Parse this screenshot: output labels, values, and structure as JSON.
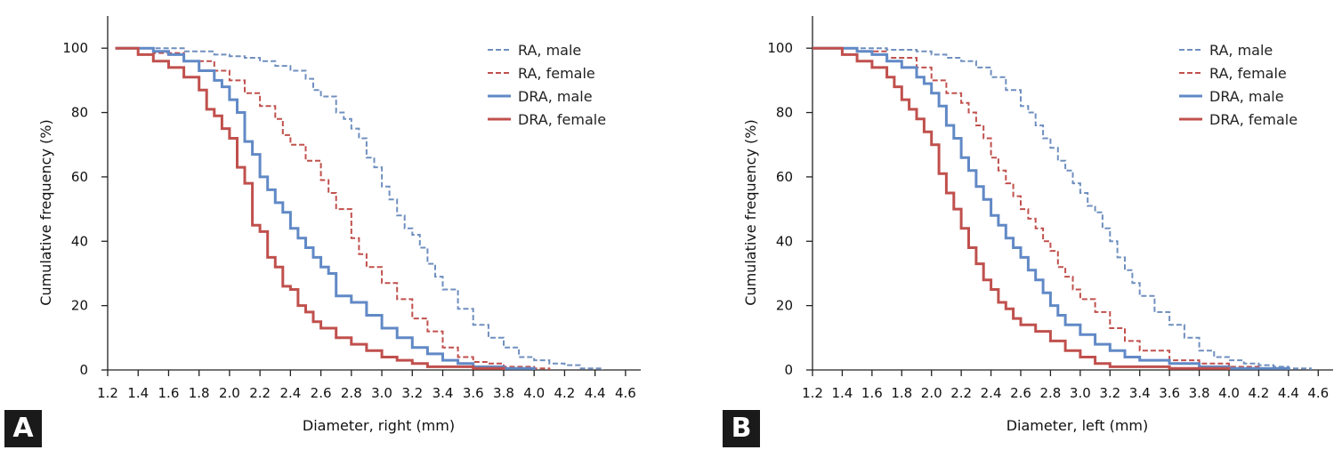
{
  "chart_data": [
    {
      "type": "line",
      "panel_label": "A",
      "xlabel": "Diameter, right (mm)",
      "ylabel": "Cumulative frequency (%)",
      "xlim": [
        1.2,
        4.7
      ],
      "ylim": [
        0,
        110
      ],
      "xticks": [
        "1.2",
        "1.4",
        "1.6",
        "1.8",
        "2.0",
        "2.2",
        "2.4",
        "2.6",
        "2.8",
        "3.0",
        "3.2",
        "3.4",
        "3.6",
        "3.8",
        "4.0",
        "4.2",
        "4.4",
        "4.6"
      ],
      "yticks": [
        "0",
        "20",
        "40",
        "60",
        "80",
        "100"
      ],
      "legend_position": "top-right",
      "series": [
        {
          "name": "RA, male",
          "color": "#6f8fbf",
          "style": "dashed",
          "x": [
            1.25,
            1.5,
            1.7,
            1.9,
            2.0,
            2.1,
            2.2,
            2.3,
            2.4,
            2.5,
            2.55,
            2.6,
            2.7,
            2.75,
            2.8,
            2.85,
            2.9,
            2.95,
            3.0,
            3.05,
            3.1,
            3.15,
            3.2,
            3.25,
            3.3,
            3.35,
            3.4,
            3.5,
            3.6,
            3.7,
            3.8,
            3.9,
            4.0,
            4.1,
            4.2,
            4.3,
            4.45
          ],
          "y": [
            100,
            100,
            99,
            98,
            97.5,
            97,
            96,
            94.5,
            93,
            90.5,
            87,
            85,
            80,
            78,
            75,
            72,
            66,
            63,
            57,
            53,
            48,
            44,
            42,
            38,
            33,
            29,
            25,
            19,
            14,
            10,
            7,
            4,
            3,
            2,
            1.5,
            0.5,
            0
          ]
        },
        {
          "name": "RA, female",
          "color": "#c0504d",
          "style": "dashed",
          "x": [
            1.25,
            1.5,
            1.7,
            1.9,
            2.0,
            2.1,
            2.2,
            2.3,
            2.35,
            2.4,
            2.5,
            2.6,
            2.65,
            2.7,
            2.8,
            2.85,
            2.9,
            3.0,
            3.1,
            3.2,
            3.3,
            3.4,
            3.5,
            3.6,
            3.7,
            3.8,
            3.9,
            4.0,
            4.1
          ],
          "y": [
            100,
            98.5,
            96,
            93,
            90,
            86,
            82,
            78,
            73,
            70,
            65,
            59,
            55,
            50,
            41,
            36,
            32,
            27,
            22,
            16,
            12,
            7,
            4,
            2.5,
            2,
            1,
            1,
            0.5,
            0
          ]
        },
        {
          "name": "DRA, male",
          "color": "#6189c6",
          "style": "solid",
          "x": [
            1.25,
            1.5,
            1.6,
            1.7,
            1.8,
            1.9,
            1.95,
            2.0,
            2.05,
            2.1,
            2.15,
            2.2,
            2.25,
            2.3,
            2.35,
            2.4,
            2.45,
            2.5,
            2.55,
            2.6,
            2.65,
            2.7,
            2.8,
            2.9,
            3.0,
            3.1,
            3.2,
            3.3,
            3.4,
            3.5,
            3.6,
            3.7,
            3.8,
            3.9,
            4.0
          ],
          "y": [
            100,
            99,
            98,
            96,
            93,
            90,
            88,
            84,
            80,
            71,
            67,
            60,
            56,
            52,
            49,
            44,
            41,
            38,
            35,
            32,
            30,
            23,
            21,
            17,
            13,
            10,
            7,
            5,
            3,
            2,
            1,
            1,
            0.5,
            0.5,
            0
          ]
        },
        {
          "name": "DRA, female",
          "color": "#c0504d",
          "style": "solid",
          "x": [
            1.25,
            1.4,
            1.5,
            1.6,
            1.7,
            1.8,
            1.85,
            1.9,
            1.95,
            2.0,
            2.05,
            2.1,
            2.15,
            2.2,
            2.25,
            2.3,
            2.35,
            2.4,
            2.45,
            2.5,
            2.55,
            2.6,
            2.7,
            2.8,
            2.9,
            3.0,
            3.1,
            3.2,
            3.3,
            3.4,
            3.6,
            3.8
          ],
          "y": [
            100,
            98,
            96,
            94,
            91,
            87,
            81,
            79,
            75,
            72,
            63,
            58,
            45,
            43,
            35,
            32,
            26,
            25,
            20,
            18,
            15,
            13,
            10,
            8,
            6,
            4,
            3,
            2,
            1,
            1,
            0.5,
            0
          ]
        }
      ]
    },
    {
      "type": "line",
      "panel_label": "B",
      "xlabel": "Diameter, left (mm)",
      "ylabel": "Cumulative frequency (%)",
      "xlim": [
        1.2,
        4.7
      ],
      "ylim": [
        0,
        110
      ],
      "xticks": [
        "1.2",
        "1.4",
        "1.6",
        "1.8",
        "2.0",
        "2.2",
        "2.4",
        "2.6",
        "2.8",
        "3.0",
        "3.2",
        "3.4",
        "3.6",
        "3.8",
        "4.0",
        "4.2",
        "4.4",
        "4.6"
      ],
      "yticks": [
        "0",
        "20",
        "40",
        "60",
        "80",
        "100"
      ],
      "legend_position": "top-right",
      "series": [
        {
          "name": "RA, male",
          "color": "#6f8fbf",
          "style": "dashed",
          "x": [
            1.2,
            1.5,
            1.7,
            1.9,
            2.0,
            2.1,
            2.2,
            2.3,
            2.4,
            2.5,
            2.6,
            2.65,
            2.7,
            2.75,
            2.8,
            2.85,
            2.9,
            2.95,
            3.0,
            3.05,
            3.1,
            3.15,
            3.2,
            3.25,
            3.3,
            3.35,
            3.4,
            3.5,
            3.6,
            3.7,
            3.8,
            3.9,
            4.0,
            4.1,
            4.2,
            4.3,
            4.4,
            4.55
          ],
          "y": [
            100,
            100,
            99.5,
            99,
            98,
            97,
            96,
            94,
            91,
            87,
            82,
            80,
            76,
            72,
            69,
            65,
            62,
            58,
            55,
            51,
            49,
            44,
            40,
            35,
            31,
            27,
            23,
            18,
            14,
            10,
            6,
            4,
            3,
            2,
            1.5,
            1,
            0.5,
            0
          ]
        },
        {
          "name": "RA, female",
          "color": "#c0504d",
          "style": "dashed",
          "x": [
            1.2,
            1.5,
            1.7,
            1.9,
            2.0,
            2.1,
            2.2,
            2.25,
            2.3,
            2.35,
            2.4,
            2.45,
            2.5,
            2.55,
            2.6,
            2.65,
            2.7,
            2.75,
            2.8,
            2.85,
            2.9,
            2.95,
            3.0,
            3.1,
            3.2,
            3.3,
            3.4,
            3.6,
            3.8,
            4.0,
            4.2,
            4.4
          ],
          "y": [
            100,
            99,
            97,
            94,
            90,
            86,
            83,
            80,
            76,
            72,
            66,
            62,
            58,
            54,
            50,
            47,
            44,
            40,
            37,
            32,
            29,
            25,
            22,
            18,
            13,
            9,
            6,
            3,
            2,
            1,
            0.5,
            0
          ]
        },
        {
          "name": "DRA, male",
          "color": "#6189c6",
          "style": "solid",
          "x": [
            1.2,
            1.5,
            1.6,
            1.7,
            1.8,
            1.9,
            1.95,
            2.0,
            2.05,
            2.1,
            2.15,
            2.2,
            2.25,
            2.3,
            2.35,
            2.4,
            2.45,
            2.5,
            2.55,
            2.6,
            2.65,
            2.7,
            2.75,
            2.8,
            2.85,
            2.9,
            3.0,
            3.1,
            3.2,
            3.3,
            3.4,
            3.6,
            3.8,
            4.0,
            4.2,
            4.4
          ],
          "y": [
            100,
            99,
            98,
            96,
            94,
            91,
            89,
            86,
            82,
            76,
            72,
            66,
            62,
            57,
            53,
            48,
            45,
            41,
            38,
            35,
            31,
            28,
            24,
            20,
            17,
            14,
            11,
            8,
            6,
            4,
            3,
            2,
            1,
            0.5,
            0.5,
            0
          ]
        },
        {
          "name": "DRA, female",
          "color": "#c0504d",
          "style": "solid",
          "x": [
            1.2,
            1.4,
            1.5,
            1.6,
            1.7,
            1.75,
            1.8,
            1.85,
            1.9,
            1.95,
            2.0,
            2.05,
            2.1,
            2.15,
            2.2,
            2.25,
            2.3,
            2.35,
            2.4,
            2.45,
            2.5,
            2.55,
            2.6,
            2.7,
            2.8,
            2.9,
            3.0,
            3.1,
            3.2,
            3.4,
            3.6,
            3.8,
            4.0
          ],
          "y": [
            100,
            98,
            96,
            94,
            91,
            88,
            84,
            81,
            78,
            74,
            70,
            61,
            55,
            50,
            44,
            38,
            33,
            28,
            25,
            21,
            19,
            16,
            14,
            12,
            9,
            6,
            4,
            2,
            1,
            1,
            0.5,
            0.5,
            0
          ]
        }
      ]
    }
  ]
}
